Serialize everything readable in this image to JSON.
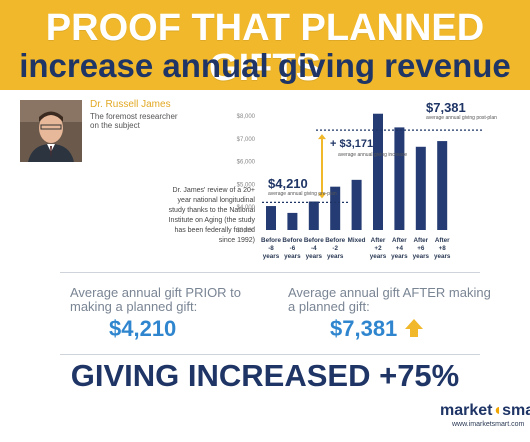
{
  "header": {
    "title_line1": "PROOF THAT PLANNED GIFTS",
    "title_line2": "increase annual giving revenue"
  },
  "researcher": {
    "name": "Dr. Russell James",
    "bio": "The foremost researcher on the subject"
  },
  "review_note": "Dr. James' review of a 20+ year national longitudinal study thanks to the National Institute on Aging (the study has been federally funded since 1992)",
  "chart_data": {
    "type": "bar",
    "categories": [
      [
        "Before",
        "-8",
        "years"
      ],
      [
        "Before",
        "-6",
        "years"
      ],
      [
        "Before",
        "-4",
        "years"
      ],
      [
        "Before",
        "-2",
        "years"
      ],
      [
        "Mixed"
      ],
      [
        "After",
        "+2",
        "years"
      ],
      [
        "After",
        "+4",
        "years"
      ],
      [
        "After",
        "+6",
        "years"
      ],
      [
        "After",
        "+8",
        "years"
      ]
    ],
    "values": [
      4050,
      3750,
      4250,
      4900,
      5200,
      8100,
      7500,
      6650,
      6900
    ],
    "ylim": [
      3000,
      8000
    ],
    "yticks": [
      "$3,000",
      "$4,000",
      "$5,000",
      "$6,000",
      "$7,000",
      "$8,000"
    ],
    "bar_color": "#243b73",
    "annotations": {
      "pre_avg": {
        "value": 4210,
        "label": "$4,210",
        "note": "average annual giving pre-plan"
      },
      "post_avg": {
        "value": 7381,
        "label": "$7,381",
        "note": "average annual giving post-plan"
      },
      "increase": {
        "label": "+ $3,171",
        "note": "average annual giving increase"
      }
    }
  },
  "summary": {
    "prior_label": "Average annual gift PRIOR to making a planned gift:",
    "prior_value": "$4,210",
    "after_label": "Average annual gift AFTER making a planned gift:",
    "after_value": "$7,381",
    "conclusion": "GIVING INCREASED +75%"
  },
  "footer": {
    "brand_part1": "market",
    "brand_part2": "sma",
    "url": "www.imarketsmart.com"
  },
  "colors": {
    "banner": "#f0b82a",
    "navy": "#1f3566",
    "blue": "#2f86cf",
    "arrow": "#f0b82a"
  }
}
